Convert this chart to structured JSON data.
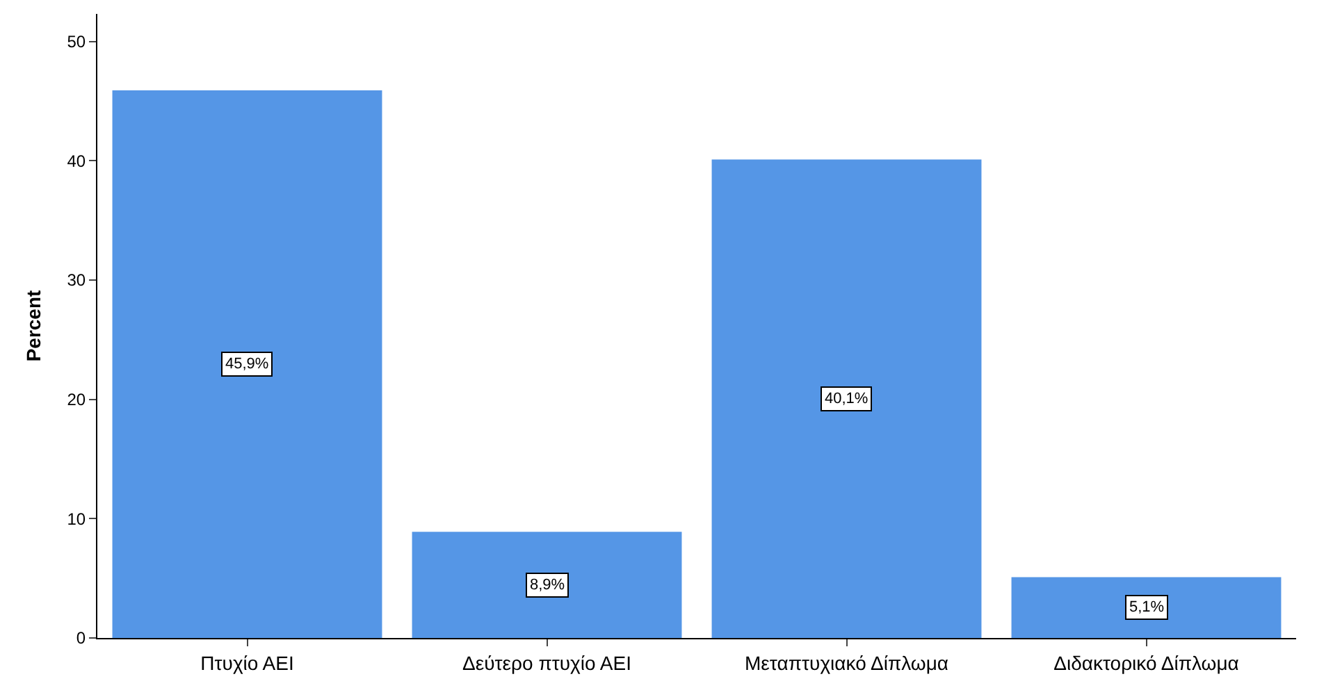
{
  "chart_data": {
    "type": "bar",
    "ylabel": "Percent",
    "categories": [
      "Πτυχίο ΑΕΙ",
      "Δεύτερο πτυχίο ΑΕΙ",
      "Μεταπτυχιακό Δίπλωμα",
      "Διδακτορικό Δίπλωμα"
    ],
    "values": [
      45.9,
      8.9,
      40.1,
      5.1
    ],
    "value_labels": [
      "45,9%",
      "8,9%",
      "40,1%",
      "5,1%"
    ],
    "color": "#5596e6",
    "ylim": [
      0,
      52.3
    ],
    "yticks": [
      0,
      10,
      20,
      30,
      40,
      50
    ]
  }
}
